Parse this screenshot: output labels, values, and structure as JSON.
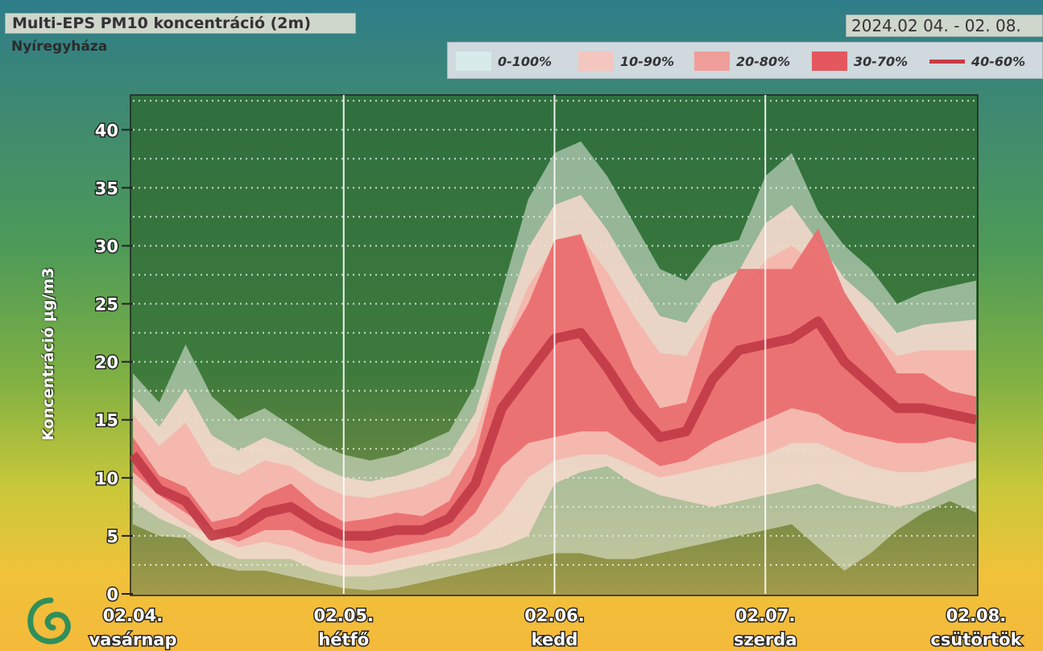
{
  "header": {
    "title": "Multi-EPS PM10 koncentráció (2m)",
    "location": "Nyíregyháza",
    "date_range": "2024.02 04. - 02. 08."
  },
  "legend": {
    "items": [
      {
        "label": "0-100%",
        "color": "#d7ecea"
      },
      {
        "label": "10-90%",
        "color": "#f4c6c0"
      },
      {
        "label": "20-80%",
        "color": "#ef9e99"
      },
      {
        "label": "30-70%",
        "color": "#e4575e"
      },
      {
        "label": "40-60%",
        "color": "#c93a45"
      }
    ]
  },
  "colors": {
    "band_0_100": "#e6ece1",
    "band_10_90": "#f7d9cd",
    "band_20_80": "#f5b5ab",
    "band_30_70": "#ea6e70",
    "median_line": "#c13a46",
    "grid": "#ffffff",
    "plot_bg_top": "#2f6f3e",
    "plot_bg_bottom": "#a39a4a"
  },
  "chart_data": {
    "type": "area",
    "ylabel": "Koncentráció µg/m3",
    "ylim": [
      0,
      43
    ],
    "yticks": [
      0,
      5,
      10,
      15,
      20,
      25,
      30,
      35,
      40
    ],
    "xlim": [
      0,
      96
    ],
    "xticks": [
      {
        "x": 0,
        "date": "02.04.",
        "day": "vasárnap"
      },
      {
        "x": 24,
        "date": "02.05.",
        "day": "hétfő"
      },
      {
        "x": 48,
        "date": "02.06.",
        "day": "kedd"
      },
      {
        "x": 72,
        "date": "02.07.",
        "day": "szerda"
      },
      {
        "x": 96,
        "date": "02.08.",
        "day": "csütörtök"
      }
    ],
    "grid": true,
    "x": [
      0,
      3,
      6,
      9,
      12,
      15,
      18,
      21,
      24,
      27,
      30,
      33,
      36,
      39,
      42,
      45,
      48,
      51,
      54,
      57,
      60,
      63,
      66,
      69,
      72,
      75,
      78,
      81,
      84,
      87,
      90,
      93,
      96
    ],
    "series": [
      {
        "name": "0-100%",
        "low": [
          6.0,
          5.0,
          4.8,
          2.5,
          2.0,
          2.0,
          1.5,
          1.0,
          0.5,
          0.3,
          0.5,
          1.0,
          1.5,
          2.0,
          2.5,
          3.0,
          3.5,
          3.5,
          3.0,
          3.0,
          3.5,
          4.0,
          4.5,
          5.0,
          5.5,
          6.0,
          4.0,
          2.0,
          3.5,
          5.5,
          7.0,
          8.0,
          7.0
        ],
        "high": [
          19.0,
          16.5,
          21.5,
          17.0,
          15.0,
          16.0,
          14.5,
          13.0,
          12.0,
          11.5,
          12.0,
          13.0,
          14.0,
          18.0,
          26.0,
          34.0,
          38.0,
          39.0,
          36.0,
          32.0,
          28.0,
          27.0,
          30.0,
          30.5,
          36.0,
          38.0,
          33.0,
          30.0,
          28.0,
          25.0,
          26.0,
          26.5,
          27.0
        ]
      },
      {
        "name": "10-90%",
        "low": [
          8.0,
          6.5,
          5.5,
          4.0,
          3.0,
          3.0,
          3.0,
          2.0,
          1.5,
          1.5,
          2.0,
          2.5,
          3.0,
          3.5,
          4.0,
          5.0,
          9.5,
          10.5,
          11.0,
          9.5,
          8.5,
          8.0,
          7.5,
          8.0,
          8.5,
          9.0,
          9.5,
          8.5,
          8.0,
          7.5,
          8.0,
          9.0,
          10.0
        ]
      },
      {
        "name": "20-80%",
        "low": [
          9.5,
          7.5,
          6.0,
          5.0,
          4.0,
          4.5,
          4.0,
          3.0,
          2.5,
          2.5,
          3.0,
          3.5,
          4.0,
          5.0,
          7.0,
          10.0,
          11.5,
          12.0,
          12.0,
          11.0,
          10.0,
          10.5,
          11.0,
          11.5,
          12.0,
          13.0,
          13.0,
          12.0,
          11.0,
          10.5,
          10.5,
          11.0,
          11.5
        ]
      },
      {
        "name": "30-70%",
        "low": [
          10.5,
          8.5,
          7.0,
          5.5,
          4.5,
          5.5,
          5.5,
          4.5,
          4.0,
          3.5,
          4.0,
          4.5,
          5.0,
          7.0,
          11.0,
          13.0,
          13.5,
          14.0,
          14.0,
          12.5,
          11.0,
          11.5,
          13.0,
          14.0,
          15.0,
          16.0,
          15.5,
          14.0,
          13.5,
          13.0,
          13.0,
          13.5,
          13.0
        ]
      },
      {
        "name": "40-60%",
        "mid": [
          12.0,
          9.0,
          8.0,
          5.0,
          5.5,
          7.0,
          7.5,
          6.0,
          5.0,
          5.0,
          5.5,
          5.5,
          6.5,
          9.5,
          16.0,
          19.0,
          22.0,
          22.5,
          19.5,
          16.0,
          13.5,
          14.0,
          18.5,
          21.0,
          21.5,
          22.0,
          23.5,
          20.0,
          18.0,
          16.0,
          16.0,
          15.5,
          15.0
        ]
      }
    ]
  }
}
